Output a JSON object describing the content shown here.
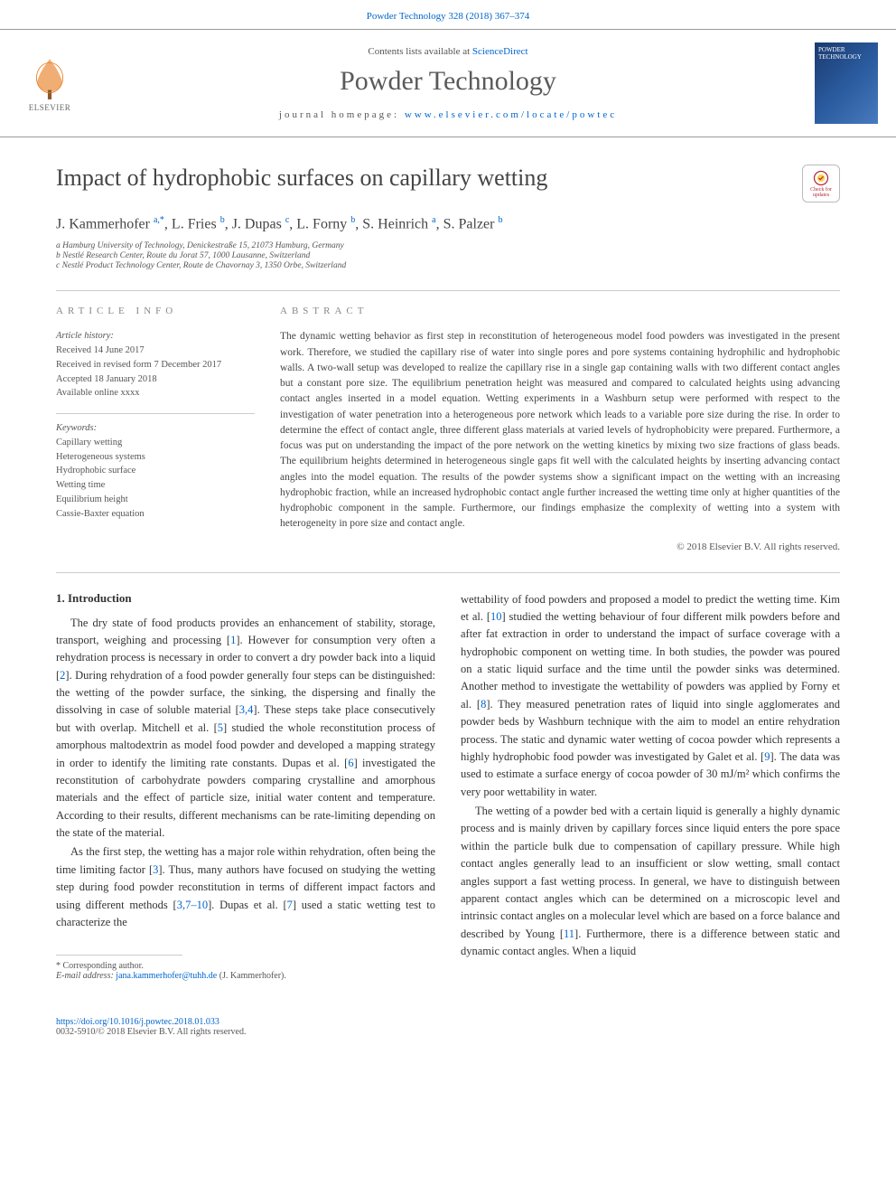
{
  "header": {
    "citation_line": "Powder Technology 328 (2018) 367–374",
    "contents_line_prefix": "Contents lists available at ",
    "contents_line_link": "ScienceDirect",
    "journal_title": "Powder Technology",
    "homepage_label": "journal homepage: ",
    "homepage_url": "www.elsevier.com/locate/powtec",
    "publisher_name": "ELSEVIER",
    "cover_text": "POWDER TECHNOLOGY"
  },
  "article": {
    "title": "Impact of hydrophobic surfaces on capillary wetting",
    "check_updates_label": "Check for updates",
    "authors_html": "J. Kammerhofer <sup>a,*</sup>, L. Fries <sup>b</sup>, J. Dupas <sup>c</sup>, L. Forny <sup>b</sup>, S. Heinrich <sup>a</sup>, S. Palzer <sup>b</sup>",
    "affiliations": [
      "a Hamburg University of Technology, Denickestraße 15, 21073 Hamburg, Germany",
      "b Nestlé Research Center, Route du Jorat 57, 1000 Lausanne, Switzerland",
      "c Nestlé Product Technology Center, Route de Chavornay 3, 1350 Orbe, Switzerland"
    ]
  },
  "article_info": {
    "heading": "ARTICLE INFO",
    "history_label": "Article history:",
    "history": [
      "Received 14 June 2017",
      "Received in revised form 7 December 2017",
      "Accepted 18 January 2018",
      "Available online xxxx"
    ],
    "keywords_label": "Keywords:",
    "keywords": [
      "Capillary wetting",
      "Heterogeneous systems",
      "Hydrophobic surface",
      "Wetting time",
      "Equilibrium height",
      "Cassie-Baxter equation"
    ]
  },
  "abstract": {
    "heading": "ABSTRACT",
    "text": "The dynamic wetting behavior as first step in reconstitution of heterogeneous model food powders was investigated in the present work. Therefore, we studied the capillary rise of water into single pores and pore systems containing hydrophilic and hydrophobic walls. A two-wall setup was developed to realize the capillary rise in a single gap containing walls with two different contact angles but a constant pore size. The equilibrium penetration height was measured and compared to calculated heights using advancing contact angles inserted in a model equation. Wetting experiments in a Washburn setup were performed with respect to the investigation of water penetration into a heterogeneous pore network which leads to a variable pore size during the rise. In order to determine the effect of contact angle, three different glass materials at varied levels of hydrophobicity were prepared. Furthermore, a focus was put on understanding the impact of the pore network on the wetting kinetics by mixing two size fractions of glass beads. The equilibrium heights determined in heterogeneous single gaps fit well with the calculated heights by inserting advancing contact angles into the model equation. The results of the powder systems show a significant impact on the wetting with an increasing hydrophobic fraction, while an increased hydrophobic contact angle further increased the wetting time only at higher quantities of the hydrophobic component in the sample. Furthermore, our findings emphasize the complexity of wetting into a system with heterogeneity in pore size and contact angle.",
    "copyright": "© 2018 Elsevier B.V. All rights reserved."
  },
  "body": {
    "intro_heading": "1. Introduction",
    "left_paras": [
      "The dry state of food products provides an enhancement of stability, storage, transport, weighing and processing [1]. However for consumption very often a rehydration process is necessary in order to convert a dry powder back into a liquid [2]. During rehydration of a food powder generally four steps can be distinguished: the wetting of the powder surface, the sinking, the dispersing and finally the dissolving in case of soluble material [3,4]. These steps take place consecutively but with overlap. Mitchell et al. [5] studied the whole reconstitution process of amorphous maltodextrin as model food powder and developed a mapping strategy in order to identify the limiting rate constants. Dupas et al. [6] investigated the reconstitution of carbohydrate powders comparing crystalline and amorphous materials and the effect of particle size, initial water content and temperature. According to their results, different mechanisms can be rate-limiting depending on the state of the material.",
      "As the first step, the wetting has a major role within rehydration, often being the time limiting factor [3]. Thus, many authors have focused on studying the wetting step during food powder reconstitution in terms of different impact factors and using different methods [3,7–10]. Dupas et al. [7] used a static wetting test to characterize the"
    ],
    "right_paras": [
      "wettability of food powders and proposed a model to predict the wetting time. Kim et al. [10] studied the wetting behaviour of four different milk powders before and after fat extraction in order to understand the impact of surface coverage with a hydrophobic component on wetting time. In both studies, the powder was poured on a static liquid surface and the time until the powder sinks was determined. Another method to investigate the wettability of powders was applied by Forny et al. [8]. They measured penetration rates of liquid into single agglomerates and powder beds by Washburn technique with the aim to model an entire rehydration process. The static and dynamic water wetting of cocoa powder which represents a highly hydrophobic food powder was investigated by Galet et al. [9]. The data was used to estimate a surface energy of cocoa powder of 30 mJ/m² which confirms the very poor wettability in water.",
      "The wetting of a powder bed with a certain liquid is generally a highly dynamic process and is mainly driven by capillary forces since liquid enters the pore space within the particle bulk due to compensation of capillary pressure. While high contact angles generally lead to an insufficient or slow wetting, small contact angles support a fast wetting process. In general, we have to distinguish between apparent contact angles which can be determined on a microscopic level and intrinsic contact angles on a molecular level which are based on a force balance and described by Young [11]. Furthermore, there is a difference between static and dynamic contact angles. When a liquid"
    ]
  },
  "footnote": {
    "corresponding": "* Corresponding author.",
    "email_label": "E-mail address: ",
    "email": "jana.kammerhofer@tuhh.de",
    "email_suffix": " (J. Kammerhofer)."
  },
  "footer": {
    "doi": "https://doi.org/10.1016/j.powtec.2018.01.033",
    "issn_line": "0032-5910/© 2018 Elsevier B.V. All rights reserved."
  },
  "colors": {
    "link": "#0066cc",
    "text": "#333333",
    "muted": "#555555",
    "rule": "#cccccc",
    "publisher_orange": "#e77817"
  },
  "typography": {
    "journal_title_size": 30,
    "article_title_size": 26,
    "authors_size": 16,
    "body_size": 12.5,
    "abstract_size": 11.5,
    "info_size": 10.5
  }
}
